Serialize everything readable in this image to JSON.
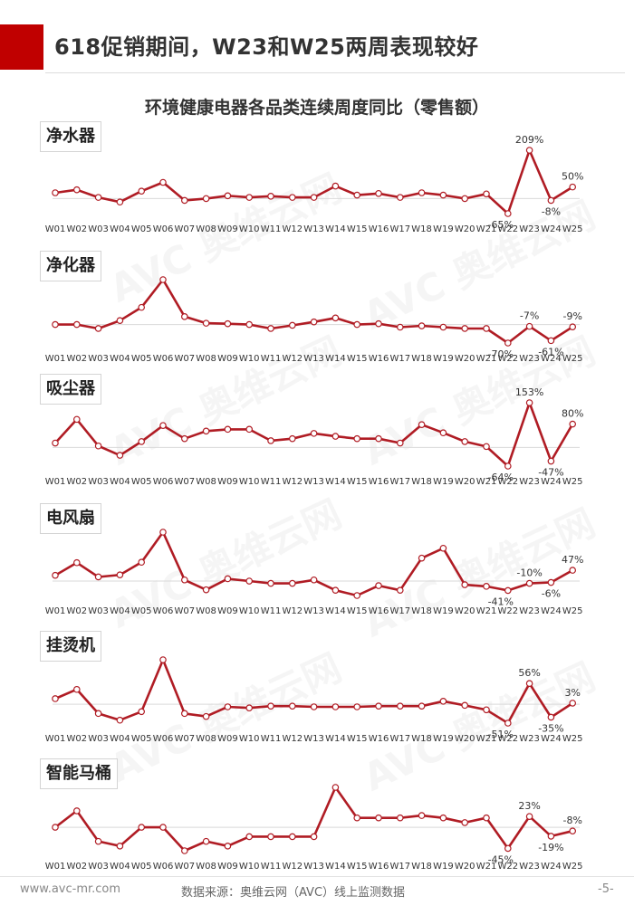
{
  "page": {
    "title": "618促销期间，W23和W25两周表现较好",
    "chart_title": "环境健康电器各品类连续周度同比（零售额）"
  },
  "footer": {
    "website": "www.avc-mr.com",
    "source": "数据来源：奥维云网（AVC）线上监测数据",
    "page_number": "-5-"
  },
  "colors": {
    "line": "#b01c24",
    "marker_fill": "#ffffff",
    "baseline": "#d9d9d9",
    "accent": "#c00000"
  },
  "chart_data": [
    {
      "type": "line",
      "label": "净水器",
      "x": [
        "W01",
        "W02",
        "W03",
        "W04",
        "W05",
        "W06",
        "W07",
        "W08",
        "W09",
        "W10",
        "W11",
        "W12",
        "W13",
        "W14",
        "W15",
        "W16",
        "W17",
        "W18",
        "W19",
        "W20",
        "W21",
        "W22",
        "W23",
        "W24",
        "W25"
      ],
      "values": [
        25,
        38,
        5,
        -15,
        32,
        70,
        -8,
        0,
        12,
        5,
        10,
        5,
        5,
        54,
        15,
        22,
        5,
        25,
        15,
        0,
        20,
        -65,
        209,
        -8,
        50
      ],
      "data_labels": [
        {
          "index": 21,
          "text": "-65%"
        },
        {
          "index": 22,
          "text": "209%"
        },
        {
          "index": 23,
          "text": "-8%"
        },
        {
          "index": 24,
          "text": "50%"
        }
      ]
    },
    {
      "type": "line",
      "label": "净化器",
      "x": [
        "W01",
        "W02",
        "W03",
        "W04",
        "W05",
        "W06",
        "W07",
        "W08",
        "W09",
        "W10",
        "W11",
        "W12",
        "W13",
        "W14",
        "W15",
        "W16",
        "W17",
        "W18",
        "W19",
        "W20",
        "W21",
        "W22",
        "W23",
        "W24",
        "W25"
      ],
      "values": [
        0,
        0,
        -15,
        15,
        65,
        170,
        30,
        5,
        3,
        0,
        -15,
        -3,
        10,
        25,
        0,
        3,
        -10,
        -5,
        -10,
        -15,
        -15,
        -70,
        -7,
        -61,
        -9
      ],
      "data_labels": [
        {
          "index": 21,
          "text": "-70%"
        },
        {
          "index": 22,
          "text": "-7%"
        },
        {
          "index": 23,
          "text": "-61%"
        },
        {
          "index": 24,
          "text": "-9%"
        }
      ]
    },
    {
      "type": "line",
      "label": "吸尘器",
      "x": [
        "W01",
        "W02",
        "W03",
        "W04",
        "W05",
        "W06",
        "W07",
        "W08",
        "W09",
        "W10",
        "W11",
        "W12",
        "W13",
        "W14",
        "W15",
        "W16",
        "W17",
        "W18",
        "W19",
        "W20",
        "W21",
        "W22",
        "W23",
        "W24",
        "W25"
      ],
      "values": [
        15,
        96,
        5,
        -27,
        20,
        75,
        30,
        56,
        62,
        62,
        23,
        30,
        48,
        38,
        30,
        30,
        15,
        78,
        50,
        20,
        3,
        -64,
        153,
        -47,
        80
      ],
      "data_labels": [
        {
          "index": 21,
          "text": "-64%"
        },
        {
          "index": 22,
          "text": "153%"
        },
        {
          "index": 23,
          "text": "-47%"
        },
        {
          "index": 24,
          "text": "80%"
        }
      ]
    },
    {
      "type": "line",
      "label": "电风扇",
      "x": [
        "W01",
        "W02",
        "W03",
        "W04",
        "W05",
        "W06",
        "W07",
        "W08",
        "W09",
        "W10",
        "W11",
        "W12",
        "W13",
        "W14",
        "W15",
        "W16",
        "W17",
        "W18",
        "W19",
        "W20",
        "W21",
        "W22",
        "W23",
        "W24",
        "W25"
      ],
      "values": [
        25,
        80,
        18,
        27,
        82,
        213,
        5,
        -38,
        10,
        0,
        -10,
        -10,
        5,
        -40,
        -63,
        -20,
        -40,
        100,
        143,
        -16,
        -23,
        -41,
        -10,
        -6,
        47
      ],
      "data_labels": [
        {
          "index": 21,
          "text": "-41%"
        },
        {
          "index": 22,
          "text": "-10%"
        },
        {
          "index": 23,
          "text": "-6%"
        },
        {
          "index": 24,
          "text": "47%"
        }
      ]
    },
    {
      "type": "line",
      "label": "挂烫机",
      "x": [
        "W01",
        "W02",
        "W03",
        "W04",
        "W05",
        "W06",
        "W07",
        "W08",
        "W09",
        "W10",
        "W11",
        "W12",
        "W13",
        "W14",
        "W15",
        "W16",
        "W17",
        "W18",
        "W19",
        "W20",
        "W21",
        "W22",
        "W23",
        "W24",
        "W25"
      ],
      "values": [
        15,
        40,
        -25,
        -43,
        -20,
        120,
        -25,
        -33,
        -7,
        -10,
        -5,
        -5,
        -7,
        -7,
        -7,
        -5,
        -5,
        -5,
        8,
        -3,
        -15,
        -51,
        56,
        -35,
        3
      ],
      "data_labels": [
        {
          "index": 21,
          "text": "-51%"
        },
        {
          "index": 22,
          "text": "56%"
        },
        {
          "index": 23,
          "text": "-35%"
        },
        {
          "index": 24,
          "text": "3%"
        }
      ]
    },
    {
      "type": "line",
      "label": "智能马桶",
      "x": [
        "W01",
        "W02",
        "W03",
        "W04",
        "W05",
        "W06",
        "W07",
        "W08",
        "W09",
        "W10",
        "W11",
        "W12",
        "W13",
        "W14",
        "W15",
        "W16",
        "W17",
        "W18",
        "W19",
        "W20",
        "W21",
        "W22",
        "W23",
        "W24",
        "W25"
      ],
      "values": [
        0,
        35,
        -30,
        -40,
        0,
        0,
        -50,
        -30,
        -40,
        -20,
        -20,
        -20,
        -20,
        85,
        20,
        20,
        20,
        25,
        20,
        10,
        20,
        -45,
        23,
        -19,
        -8
      ],
      "data_labels": [
        {
          "index": 21,
          "text": "-45%"
        },
        {
          "index": 22,
          "text": "23%"
        },
        {
          "index": 23,
          "text": "-19%"
        },
        {
          "index": 24,
          "text": "-8%"
        }
      ]
    }
  ]
}
